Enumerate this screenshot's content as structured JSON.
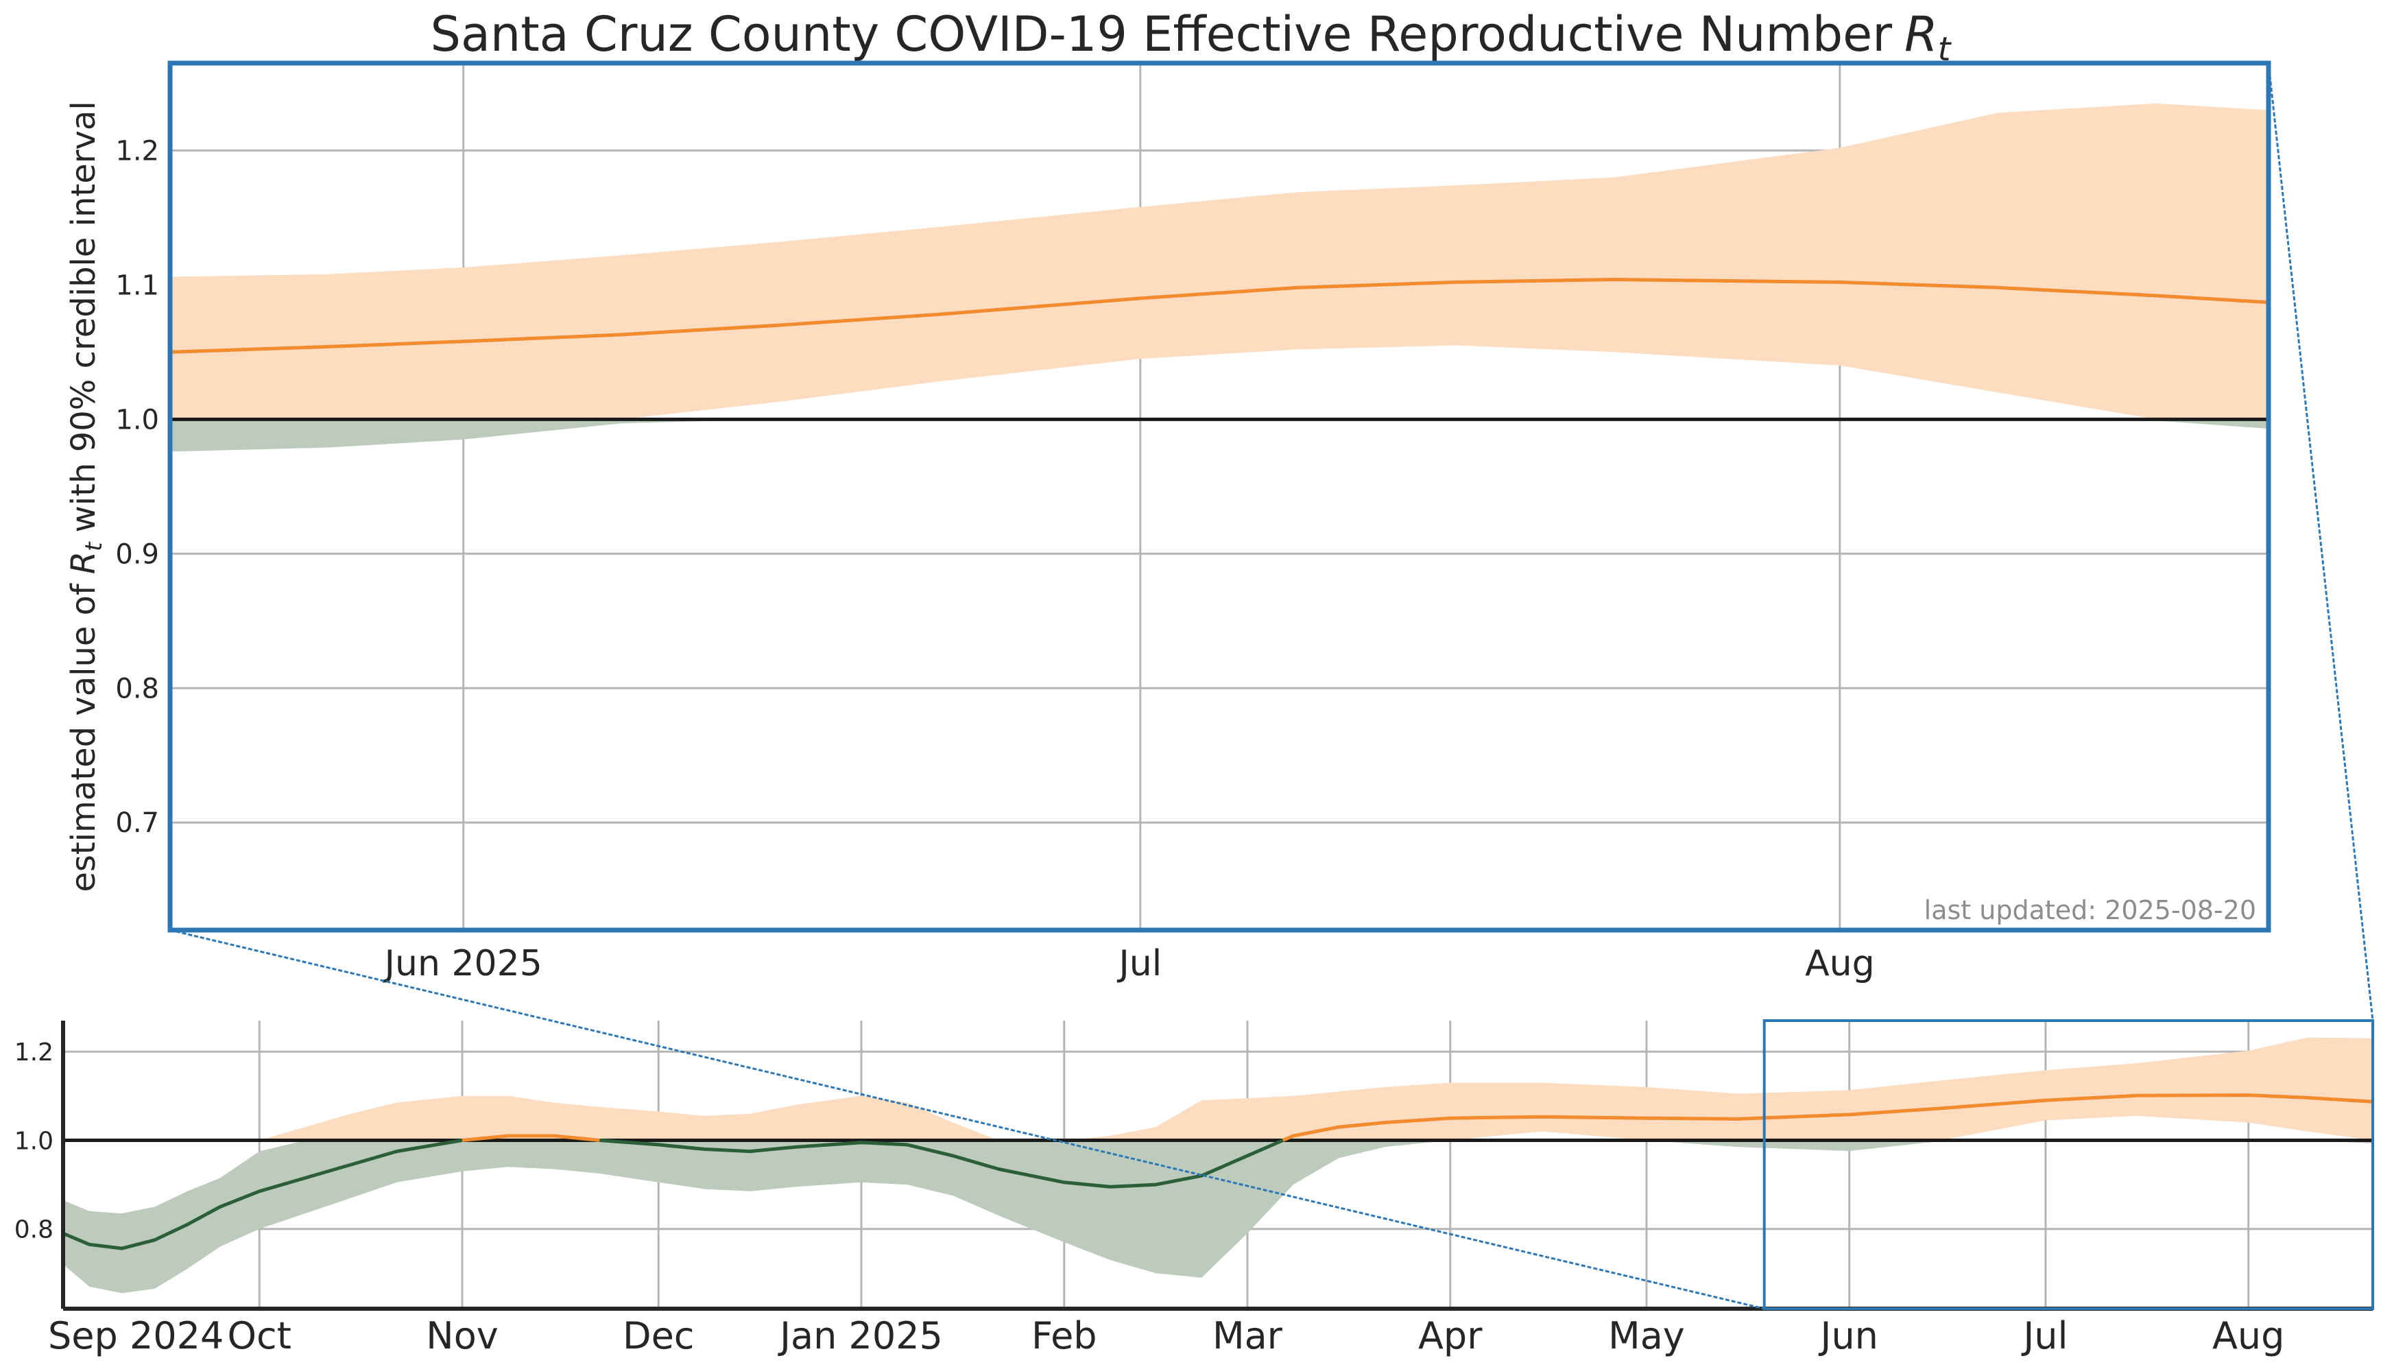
{
  "colors": {
    "above_band": "#fddcbf",
    "below_band": "#bdcbbd",
    "median_above": "#f28a2e",
    "median_below": "#2b5f38",
    "grid": "#b5b5b5",
    "zoom_box": "#2d78b4",
    "reference_line": "#1a1a1a",
    "text": "#262626",
    "updated_text": "#8c8c8c"
  },
  "chart_data": [
    {
      "id": "main",
      "type": "area",
      "title": "Santa Cruz County COVID-19 Effective Reproductive Number",
      "title_symbol": "R",
      "title_subscript": "t",
      "ylabel": "estimated value of",
      "ylabel_symbol": "R",
      "ylabel_subscript": "t",
      "ylabel_suffix": "with 90% credible interval",
      "xlim": [
        "2025-05-19",
        "2025-08-20"
      ],
      "ylim": [
        0.62,
        1.265
      ],
      "y_ticks": [
        0.7,
        0.8,
        0.9,
        1.0,
        1.1,
        1.2
      ],
      "y_tick_labels": [
        "0.7",
        "0.8",
        "0.9",
        "1.0",
        "1.1",
        "1.2"
      ],
      "x_ticks": [
        {
          "date": "2025-06-01",
          "label": "Jun 2025"
        },
        {
          "date": "2025-07-01",
          "label": "Jul"
        },
        {
          "date": "2025-08-01",
          "label": "Aug"
        }
      ],
      "grid": true,
      "reference_line": 1.0,
      "annotation": "last updated: 2025-08-20",
      "series": [
        {
          "x": [
            "2025-05-19",
            "2025-05-26",
            "2025-06-01",
            "2025-06-08",
            "2025-06-15",
            "2025-06-22",
            "2025-07-01",
            "2025-07-08",
            "2025-07-15",
            "2025-07-22",
            "2025-08-01",
            "2025-08-08",
            "2025-08-15",
            "2025-08-20"
          ],
          "median": [
            1.05,
            1.054,
            1.058,
            1.063,
            1.07,
            1.078,
            1.09,
            1.098,
            1.102,
            1.104,
            1.102,
            1.098,
            1.092,
            1.087
          ],
          "lower": [
            0.976,
            0.979,
            0.985,
            0.997,
            1.013,
            1.028,
            1.045,
            1.052,
            1.055,
            1.05,
            1.04,
            1.02,
            0.999,
            0.993
          ],
          "upper": [
            1.106,
            1.108,
            1.113,
            1.122,
            1.132,
            1.143,
            1.158,
            1.169,
            1.174,
            1.18,
            1.202,
            1.228,
            1.235,
            1.23
          ]
        }
      ]
    },
    {
      "id": "overview",
      "type": "area",
      "xlim": [
        "2024-09-01",
        "2025-08-20"
      ],
      "ylim": [
        0.62,
        1.27
      ],
      "y_ticks": [
        0.8,
        1.0,
        1.2
      ],
      "y_tick_labels": [
        "0.8",
        "1.0",
        "1.2"
      ],
      "x_ticks": [
        {
          "date": "2024-09-01",
          "label": "Sep 2024"
        },
        {
          "date": "2024-10-01",
          "label": "Oct"
        },
        {
          "date": "2024-11-01",
          "label": "Nov"
        },
        {
          "date": "2024-12-01",
          "label": "Dec"
        },
        {
          "date": "2025-01-01",
          "label": "Jan 2025"
        },
        {
          "date": "2025-02-01",
          "label": "Feb"
        },
        {
          "date": "2025-03-01",
          "label": "Mar"
        },
        {
          "date": "2025-04-01",
          "label": "Apr"
        },
        {
          "date": "2025-05-01",
          "label": "May"
        },
        {
          "date": "2025-06-01",
          "label": "Jun"
        },
        {
          "date": "2025-07-01",
          "label": "Jul"
        },
        {
          "date": "2025-08-01",
          "label": "Aug"
        }
      ],
      "grid": true,
      "reference_line": 1.0,
      "zoom_window": [
        "2025-05-19",
        "2025-08-20"
      ],
      "series": [
        {
          "x": [
            "2024-09-01",
            "2024-09-05",
            "2024-09-10",
            "2024-09-15",
            "2024-09-20",
            "2024-09-25",
            "2024-10-01",
            "2024-10-08",
            "2024-10-15",
            "2024-10-22",
            "2024-11-01",
            "2024-11-08",
            "2024-11-15",
            "2024-11-22",
            "2024-12-01",
            "2024-12-08",
            "2024-12-15",
            "2024-12-22",
            "2025-01-01",
            "2025-01-08",
            "2025-01-15",
            "2025-01-22",
            "2025-02-01",
            "2025-02-08",
            "2025-02-15",
            "2025-02-22",
            "2025-03-01",
            "2025-03-08",
            "2025-03-15",
            "2025-03-22",
            "2025-04-01",
            "2025-04-15",
            "2025-05-01",
            "2025-05-15",
            "2025-06-01",
            "2025-06-15",
            "2025-07-01",
            "2025-07-15",
            "2025-08-01",
            "2025-08-10",
            "2025-08-20"
          ],
          "median": [
            0.79,
            0.765,
            0.756,
            0.775,
            0.81,
            0.85,
            0.885,
            0.915,
            0.945,
            0.975,
            1.0,
            1.01,
            1.01,
            1.0,
            0.99,
            0.98,
            0.975,
            0.985,
            0.995,
            0.99,
            0.965,
            0.935,
            0.905,
            0.895,
            0.9,
            0.92,
            0.965,
            1.01,
            1.03,
            1.04,
            1.05,
            1.053,
            1.05,
            1.048,
            1.058,
            1.072,
            1.09,
            1.101,
            1.102,
            1.096,
            1.087
          ],
          "lower": [
            0.865,
            0.84,
            0.835,
            0.85,
            0.885,
            0.915,
            0.93,
            0.955,
            0.975,
            0.99,
            1.0,
            1.0,
            1.0,
            1.0,
            1.0,
            1.0,
            1.0,
            1.0,
            1.0,
            1.0,
            1.0,
            1.0,
            1.0,
            1.0,
            1.0,
            1.0,
            1.0,
            1.01,
            1.02,
            1.025,
            1.03,
            1.03,
            1.01,
            0.99,
            0.985,
            1.013,
            1.045,
            1.055,
            1.04,
            1.02,
            0.993
          ],
          "upper": [
            0.865,
            0.84,
            0.835,
            0.85,
            0.885,
            0.915,
            0.975,
            1.03,
            1.06,
            1.085,
            1.1,
            1.1,
            1.085,
            1.075,
            1.065,
            1.055,
            1.06,
            1.08,
            1.1,
            1.085,
            1.04,
            1.0,
            1.0,
            1.01,
            1.03,
            1.09,
            1.095,
            1.1,
            1.11,
            1.12,
            1.13,
            1.13,
            1.12,
            1.105,
            1.113,
            1.135,
            1.158,
            1.174,
            1.202,
            1.232,
            1.23
          ],
          "below_lower": [
            0.865,
            0.84,
            0.835,
            0.85,
            0.885,
            0.915,
            0.93,
            0.955,
            0.975,
            0.99,
            1.0,
            1.0,
            1.0,
            1.0,
            1.0,
            1.0,
            1.0,
            1.0,
            1.0,
            1.0,
            1.0,
            1.0,
            1.0,
            1.0,
            1.0,
            1.0,
            1.0,
            1.0,
            1.0,
            1.0,
            1.0,
            1.0,
            1.0,
            1.0,
            1.0,
            1.0,
            1.0,
            1.0,
            1.0,
            1.0,
            1.0
          ],
          "band_low": [
            0.72,
            0.67,
            0.655,
            0.665,
            0.71,
            0.76,
            0.8,
            0.835,
            0.87,
            0.905,
            0.93,
            0.94,
            0.935,
            0.925,
            0.905,
            0.89,
            0.885,
            0.895,
            0.905,
            0.9,
            0.875,
            0.83,
            0.77,
            0.73,
            0.7,
            0.69,
            0.79,
            0.9,
            0.96,
            0.985,
            1.0,
            1.02,
            1.0,
            0.985,
            0.976,
            0.998,
            1.045,
            1.055,
            1.04,
            1.02,
            0.993
          ],
          "band_high": [
            0.865,
            0.84,
            0.835,
            0.85,
            0.885,
            0.915,
            0.975,
            1.03,
            1.06,
            1.085,
            1.1,
            1.1,
            1.085,
            1.075,
            1.065,
            1.055,
            1.06,
            1.08,
            1.1,
            1.085,
            1.04,
            1.0,
            1.0,
            1.01,
            1.03,
            1.09,
            1.095,
            1.1,
            1.11,
            1.12,
            1.13,
            1.13,
            1.12,
            1.105,
            1.113,
            1.135,
            1.158,
            1.174,
            1.202,
            1.232,
            1.23
          ]
        }
      ]
    }
  ]
}
